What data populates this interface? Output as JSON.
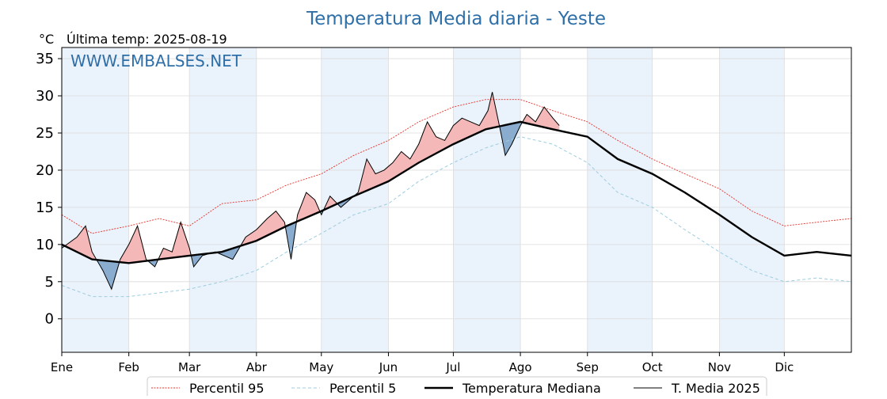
{
  "chart_data": {
    "type": "line",
    "title": "Temperatura Media diaria - Yeste",
    "unit_label": "°C",
    "subtitle": "Última temp: 2025-08-19",
    "watermark": "WWW.EMBALSES.NET",
    "ylim": [
      -4.5,
      36.5
    ],
    "yticks": [
      0,
      5,
      10,
      15,
      20,
      25,
      30,
      35
    ],
    "xlim": [
      1,
      366
    ],
    "months": [
      "Ene",
      "Feb",
      "Mar",
      "Abr",
      "May",
      "Jun",
      "Jul",
      "Ago",
      "Sep",
      "Oct",
      "Nov",
      "Dic"
    ],
    "month_start_days": [
      1,
      32,
      60,
      91,
      121,
      152,
      182,
      213,
      244,
      274,
      305,
      335
    ],
    "grid": true,
    "legend_position": "bottom",
    "colors": {
      "p95": "#e8302a",
      "p5": "#9dcde0",
      "median": "#000000",
      "media2025": "#000000",
      "above_fill": "#f4b8b8",
      "above_fill_strong": "#e86a6a",
      "below_fill": "#8aaccf",
      "below_fill_strong": "#1f4e8c",
      "band": "#eaf2fb",
      "title": "#2e6fa8"
    },
    "series": [
      {
        "name": "Percentil 95",
        "style": "dotted-red",
        "points": [
          [
            1,
            14.0
          ],
          [
            15,
            11.5
          ],
          [
            32,
            12.5
          ],
          [
            46,
            13.5
          ],
          [
            60,
            12.5
          ],
          [
            75,
            15.5
          ],
          [
            91,
            16.0
          ],
          [
            105,
            18.0
          ],
          [
            121,
            19.5
          ],
          [
            136,
            22.0
          ],
          [
            152,
            24.0
          ],
          [
            166,
            26.5
          ],
          [
            182,
            28.5
          ],
          [
            197,
            29.5
          ],
          [
            213,
            29.5
          ],
          [
            228,
            28.0
          ],
          [
            244,
            26.5
          ],
          [
            258,
            24.0
          ],
          [
            274,
            21.5
          ],
          [
            289,
            19.5
          ],
          [
            305,
            17.5
          ],
          [
            320,
            14.5
          ],
          [
            335,
            12.5
          ],
          [
            350,
            13.0
          ],
          [
            366,
            13.5
          ]
        ]
      },
      {
        "name": "Percentil 5",
        "style": "dashed-lightblue",
        "points": [
          [
            1,
            4.5
          ],
          [
            15,
            3.0
          ],
          [
            32,
            3.0
          ],
          [
            46,
            3.5
          ],
          [
            60,
            4.0
          ],
          [
            75,
            5.0
          ],
          [
            91,
            6.5
          ],
          [
            105,
            9.0
          ],
          [
            121,
            11.5
          ],
          [
            136,
            14.0
          ],
          [
            152,
            15.5
          ],
          [
            166,
            18.5
          ],
          [
            182,
            21.0
          ],
          [
            197,
            23.0
          ],
          [
            213,
            24.5
          ],
          [
            228,
            23.5
          ],
          [
            244,
            21.0
          ],
          [
            258,
            17.0
          ],
          [
            274,
            15.0
          ],
          [
            289,
            12.0
          ],
          [
            305,
            9.0
          ],
          [
            320,
            6.5
          ],
          [
            335,
            5.0
          ],
          [
            350,
            5.5
          ],
          [
            366,
            5.0
          ]
        ]
      },
      {
        "name": "Temperatura Mediana",
        "style": "thick-black",
        "points": [
          [
            1,
            10.0
          ],
          [
            15,
            8.0
          ],
          [
            32,
            7.5
          ],
          [
            46,
            8.0
          ],
          [
            60,
            8.5
          ],
          [
            75,
            9.0
          ],
          [
            91,
            10.5
          ],
          [
            105,
            12.5
          ],
          [
            121,
            14.5
          ],
          [
            136,
            16.5
          ],
          [
            152,
            18.5
          ],
          [
            166,
            21.0
          ],
          [
            182,
            23.5
          ],
          [
            197,
            25.5
          ],
          [
            213,
            26.5
          ],
          [
            228,
            25.5
          ],
          [
            244,
            24.5
          ],
          [
            258,
            21.5
          ],
          [
            274,
            19.5
          ],
          [
            289,
            17.0
          ],
          [
            305,
            14.0
          ],
          [
            320,
            11.0
          ],
          [
            335,
            8.5
          ],
          [
            350,
            9.0
          ],
          [
            366,
            8.5
          ]
        ]
      },
      {
        "name": "T. Media 2025",
        "style": "thin-black",
        "points": [
          [
            1,
            9.5
          ],
          [
            8,
            11.0
          ],
          [
            12,
            12.5
          ],
          [
            15,
            9.0
          ],
          [
            20,
            6.5
          ],
          [
            24,
            4.0
          ],
          [
            28,
            8.0
          ],
          [
            32,
            10.0
          ],
          [
            36,
            12.5
          ],
          [
            40,
            8.0
          ],
          [
            44,
            7.0
          ],
          [
            48,
            9.5
          ],
          [
            52,
            9.0
          ],
          [
            56,
            13.0
          ],
          [
            60,
            9.5
          ],
          [
            62,
            7.0
          ],
          [
            66,
            8.5
          ],
          [
            72,
            9.0
          ],
          [
            80,
            8.0
          ],
          [
            86,
            11.0
          ],
          [
            91,
            12.0
          ],
          [
            96,
            13.5
          ],
          [
            100,
            14.5
          ],
          [
            104,
            13.0
          ],
          [
            107,
            8.0
          ],
          [
            110,
            14.0
          ],
          [
            114,
            17.0
          ],
          [
            118,
            16.0
          ],
          [
            121,
            14.0
          ],
          [
            125,
            16.5
          ],
          [
            130,
            15.0
          ],
          [
            134,
            16.0
          ],
          [
            138,
            17.0
          ],
          [
            142,
            21.5
          ],
          [
            146,
            19.5
          ],
          [
            150,
            20.0
          ],
          [
            154,
            21.0
          ],
          [
            158,
            22.5
          ],
          [
            162,
            21.5
          ],
          [
            166,
            23.5
          ],
          [
            170,
            26.5
          ],
          [
            174,
            24.5
          ],
          [
            178,
            24.0
          ],
          [
            182,
            26.0
          ],
          [
            186,
            27.0
          ],
          [
            190,
            26.5
          ],
          [
            194,
            26.0
          ],
          [
            198,
            28.0
          ],
          [
            200,
            30.5
          ],
          [
            204,
            25.0
          ],
          [
            206,
            22.0
          ],
          [
            209,
            23.5
          ],
          [
            213,
            26.0
          ],
          [
            216,
            27.5
          ],
          [
            220,
            26.5
          ],
          [
            224,
            28.5
          ],
          [
            228,
            27.0
          ],
          [
            231,
            26.0
          ]
        ]
      }
    ],
    "legend": [
      {
        "label": "Percentil 95",
        "style": "dotted-red"
      },
      {
        "label": "Percentil 5",
        "style": "dashed-lightblue"
      },
      {
        "label": "Temperatura Mediana",
        "style": "thick-black"
      },
      {
        "label": "T. Media 2025",
        "style": "thin-black"
      }
    ]
  }
}
